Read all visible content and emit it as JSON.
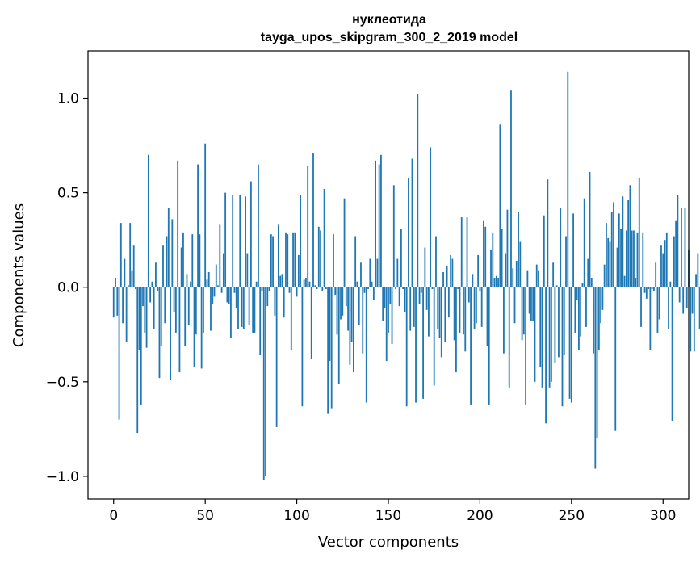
{
  "chart_data": {
    "type": "bar",
    "title_line1": "нуклеотида",
    "title_line2": "tayga_upos_skipgram_300_2_2019 model",
    "xlabel": "Vector components",
    "ylabel": "Components values",
    "xlim": [
      -14,
      314
    ],
    "ylim": [
      -1.12,
      1.25
    ],
    "xticks": [
      0,
      50,
      100,
      150,
      200,
      250,
      300
    ],
    "yticks": [
      -1.0,
      -0.5,
      0.0,
      0.5,
      1.0
    ],
    "ytick_labels": [
      "−1.0",
      "−0.5",
      "0.0",
      "0.5",
      "1.0"
    ],
    "bar_color": "#1f77b4",
    "bar_width": 0.8,
    "x_start": 0,
    "values": [
      -0.16,
      0.05,
      -0.15,
      -0.7,
      0.34,
      -0.19,
      0.15,
      -0.29,
      0.01,
      0.34,
      0.09,
      0.22,
      -0.01,
      -0.77,
      -0.33,
      -0.62,
      -0.1,
      -0.24,
      -0.32,
      0.7,
      -0.08,
      0.03,
      -0.22,
      0.13,
      -0.02,
      -0.48,
      -0.31,
      0.22,
      -0.19,
      0.27,
      0.42,
      -0.49,
      0.36,
      -0.13,
      -0.24,
      0.67,
      -0.45,
      0.21,
      0.29,
      -0.31,
      0.07,
      -0.2,
      0.03,
      0.28,
      -0.42,
      -0.25,
      0.65,
      0.28,
      -0.43,
      -0.24,
      0.76,
      0.04,
      0.08,
      -0.23,
      -0.09,
      -0.05,
      0.12,
      0.01,
      0.33,
      -0.03,
      0.18,
      0.5,
      -0.08,
      -0.09,
      -0.27,
      0.49,
      -0.03,
      -0.11,
      -0.22,
      0.49,
      -0.21,
      -0.22,
      0.48,
      0.18,
      -0.2,
      0.56,
      -0.24,
      -0.24,
      0.03,
      0.65,
      -0.36,
      -0.02,
      -1.02,
      -1.0,
      -0.1,
      -0.02,
      0.28,
      0.27,
      -0.15,
      -0.74,
      0.33,
      0.06,
      0.07,
      -0.16,
      0.29,
      0.28,
      -0.03,
      -0.33,
      0.29,
      0.29,
      -0.05,
      0.17,
      0.49,
      -0.63,
      0.04,
      0.05,
      0.64,
      0.03,
      -0.38,
      0.71,
      0.01,
      -0.01,
      0.32,
      0.3,
      -0.02,
      0.52,
      -0.01,
      -0.67,
      -0.39,
      -0.64,
      0.28,
      -0.04,
      -0.25,
      -0.51,
      -0.17,
      -0.15,
      0.47,
      -0.1,
      -0.23,
      -0.41,
      -0.29,
      -0.45,
      0.27,
      0.03,
      -0.2,
      0.13,
      -0.35,
      -0.03,
      -0.61,
      -0.01,
      0.15,
      0.03,
      -0.07,
      0.67,
      0.15,
      0.65,
      0.7,
      -0.18,
      -0.11,
      -0.39,
      -0.24,
      -0.09,
      -0.3,
      0.54,
      -0.01,
      0.15,
      -0.1,
      0.31,
      -0.01,
      -0.13,
      -0.63,
      0.58,
      -0.23,
      0.68,
      -0.21,
      -0.61,
      1.02,
      -0.09,
      -0.03,
      -0.59,
      0.21,
      -0.12,
      -0.26,
      0.74,
      -0.01,
      -0.52,
      0.27,
      -0.22,
      -0.27,
      -0.37,
      0.08,
      -0.29,
      0.11,
      -0.16,
      0.17,
      0.15,
      -0.28,
      -0.45,
      -0.01,
      -0.24,
      0.37,
      -0.25,
      -0.34,
      0.37,
      -0.08,
      -0.62,
      0.07,
      -0.22,
      -0.19,
      0.17,
      -0.02,
      -0.21,
      0.35,
      0.32,
      -0.31,
      -0.62,
      0.2,
      0.29,
      0.05,
      0.06,
      0.05,
      0.86,
      0.31,
      -0.35,
      0.18,
      0.41,
      -0.53,
      1.04,
      0.1,
      -0.19,
      0.14,
      0.4,
      0.24,
      -0.28,
      -0.25,
      -0.62,
      0.09,
      -0.14,
      -0.18,
      -0.18,
      -0.5,
      0.12,
      0.09,
      -0.42,
      -0.53,
      0.38,
      -0.72,
      0.57,
      -0.53,
      -0.5,
      0.13,
      -0.4,
      0.01,
      -0.37,
      0.42,
      -0.63,
      -0.36,
      0.27,
      1.14,
      -0.59,
      -0.61,
      0.39,
      -0.24,
      -0.07,
      -0.33,
      -0.26,
      0.02,
      0.47,
      -0.21,
      0.15,
      0.61,
      0.05,
      -0.35,
      -0.96,
      -0.8,
      -0.33,
      -0.19,
      -0.12,
      0.12,
      0.34,
      0.26,
      0.24,
      0.4,
      0.45,
      -0.76,
      0.21,
      0.39,
      0.31,
      0.48,
      0.06,
      0.3,
      0.46,
      0.54,
      0.3,
      0.3,
      0.05,
      0.29,
      0.58,
      -0.21,
      0.29,
      -0.03,
      -0.06,
      -0.01,
      -0.33,
      -0.01,
      -0.02,
      0.13,
      -0.24,
      -0.17,
      0.22,
      0.18,
      0.25,
      0.29,
      -0.22,
      0.03,
      -0.71,
      0.27,
      0.35,
      0.49,
      -0.08,
      0.42,
      -0.14,
      0.42,
      -0.11,
      0.2,
      -0.34,
      -0.14,
      -0.34,
      0.07,
      0.18,
      -0.22
    ]
  }
}
